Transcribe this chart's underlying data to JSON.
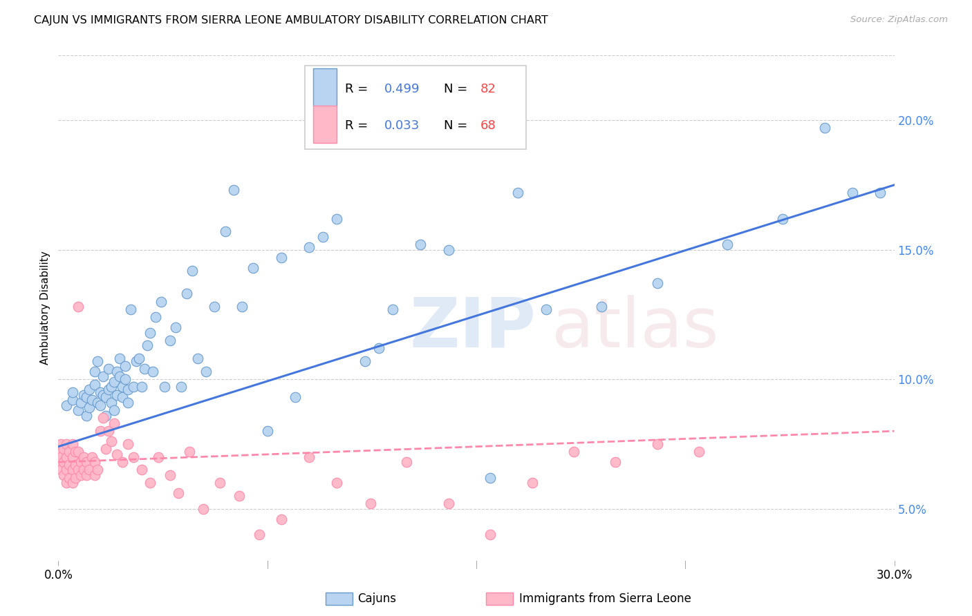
{
  "title": "CAJUN VS IMMIGRANTS FROM SIERRA LEONE AMBULATORY DISABILITY CORRELATION CHART",
  "source": "Source: ZipAtlas.com",
  "ylabel": "Ambulatory Disability",
  "right_yticks": [
    "5.0%",
    "10.0%",
    "15.0%",
    "20.0%"
  ],
  "right_ytick_vals": [
    0.05,
    0.1,
    0.15,
    0.2
  ],
  "xlim": [
    0.0,
    0.3
  ],
  "ylim": [
    0.03,
    0.225
  ],
  "legend_cajun_r_label": "R = ",
  "legend_cajun_r_val": "0.499",
  "legend_cajun_n_label": "  N = ",
  "legend_cajun_n_val": "82",
  "legend_sierra_r_label": "R = ",
  "legend_sierra_r_val": "0.033",
  "legend_sierra_n_label": "  N = ",
  "legend_sierra_n_val": "68",
  "cajun_color": "#b8d4f0",
  "cajun_edge": "#6699cc",
  "sierra_color": "#ffb8c8",
  "sierra_edge": "#ff88aa",
  "cajun_line_color": "#4477dd",
  "sierra_line_color": "#ff88aa",
  "color_rv": "#4477dd",
  "color_nv": "#ff4444",
  "cajun_scatter_x": [
    0.003,
    0.005,
    0.005,
    0.007,
    0.008,
    0.009,
    0.01,
    0.01,
    0.011,
    0.011,
    0.012,
    0.013,
    0.013,
    0.014,
    0.014,
    0.015,
    0.015,
    0.016,
    0.016,
    0.017,
    0.017,
    0.018,
    0.018,
    0.019,
    0.019,
    0.02,
    0.02,
    0.021,
    0.021,
    0.022,
    0.022,
    0.023,
    0.023,
    0.024,
    0.024,
    0.025,
    0.025,
    0.026,
    0.027,
    0.028,
    0.029,
    0.03,
    0.031,
    0.032,
    0.033,
    0.034,
    0.035,
    0.037,
    0.038,
    0.04,
    0.042,
    0.044,
    0.046,
    0.048,
    0.05,
    0.053,
    0.056,
    0.06,
    0.063,
    0.066,
    0.07,
    0.075,
    0.08,
    0.085,
    0.09,
    0.095,
    0.1,
    0.11,
    0.115,
    0.12,
    0.13,
    0.14,
    0.155,
    0.165,
    0.175,
    0.195,
    0.215,
    0.24,
    0.26,
    0.275,
    0.285,
    0.295
  ],
  "cajun_scatter_y": [
    0.09,
    0.092,
    0.095,
    0.088,
    0.091,
    0.094,
    0.086,
    0.093,
    0.089,
    0.096,
    0.092,
    0.098,
    0.103,
    0.091,
    0.107,
    0.09,
    0.095,
    0.094,
    0.101,
    0.086,
    0.093,
    0.096,
    0.104,
    0.091,
    0.097,
    0.099,
    0.088,
    0.103,
    0.094,
    0.101,
    0.108,
    0.093,
    0.097,
    0.1,
    0.105,
    0.091,
    0.096,
    0.127,
    0.097,
    0.107,
    0.108,
    0.097,
    0.104,
    0.113,
    0.118,
    0.103,
    0.124,
    0.13,
    0.097,
    0.115,
    0.12,
    0.097,
    0.133,
    0.142,
    0.108,
    0.103,
    0.128,
    0.157,
    0.173,
    0.128,
    0.143,
    0.08,
    0.147,
    0.093,
    0.151,
    0.155,
    0.162,
    0.107,
    0.112,
    0.127,
    0.152,
    0.15,
    0.062,
    0.172,
    0.127,
    0.128,
    0.137,
    0.152,
    0.162,
    0.197,
    0.172,
    0.172
  ],
  "sierra_scatter_x": [
    0.0,
    0.0,
    0.001,
    0.001,
    0.001,
    0.002,
    0.002,
    0.002,
    0.003,
    0.003,
    0.003,
    0.003,
    0.004,
    0.004,
    0.004,
    0.005,
    0.005,
    0.005,
    0.005,
    0.006,
    0.006,
    0.006,
    0.007,
    0.007,
    0.007,
    0.008,
    0.008,
    0.009,
    0.009,
    0.01,
    0.01,
    0.011,
    0.012,
    0.013,
    0.013,
    0.014,
    0.015,
    0.016,
    0.017,
    0.018,
    0.019,
    0.02,
    0.021,
    0.023,
    0.025,
    0.027,
    0.03,
    0.033,
    0.036,
    0.04,
    0.043,
    0.047,
    0.052,
    0.058,
    0.065,
    0.072,
    0.08,
    0.09,
    0.1,
    0.112,
    0.125,
    0.14,
    0.155,
    0.17,
    0.185,
    0.2,
    0.215,
    0.23
  ],
  "sierra_scatter_y": [
    0.068,
    0.072,
    0.065,
    0.07,
    0.075,
    0.063,
    0.068,
    0.073,
    0.06,
    0.065,
    0.07,
    0.075,
    0.062,
    0.067,
    0.072,
    0.06,
    0.065,
    0.07,
    0.075,
    0.062,
    0.067,
    0.072,
    0.128,
    0.065,
    0.072,
    0.063,
    0.068,
    0.065,
    0.07,
    0.063,
    0.068,
    0.065,
    0.07,
    0.063,
    0.068,
    0.065,
    0.08,
    0.085,
    0.073,
    0.08,
    0.076,
    0.083,
    0.071,
    0.068,
    0.075,
    0.07,
    0.065,
    0.06,
    0.07,
    0.063,
    0.056,
    0.072,
    0.05,
    0.06,
    0.055,
    0.04,
    0.046,
    0.07,
    0.06,
    0.052,
    0.068,
    0.052,
    0.04,
    0.06,
    0.072,
    0.068,
    0.075,
    0.072
  ],
  "cajun_trendline_x": [
    0.0,
    0.3
  ],
  "cajun_trendline_y": [
    0.074,
    0.175
  ],
  "sierra_trendline_x": [
    0.0,
    0.3
  ],
  "sierra_trendline_y": [
    0.068,
    0.08
  ]
}
